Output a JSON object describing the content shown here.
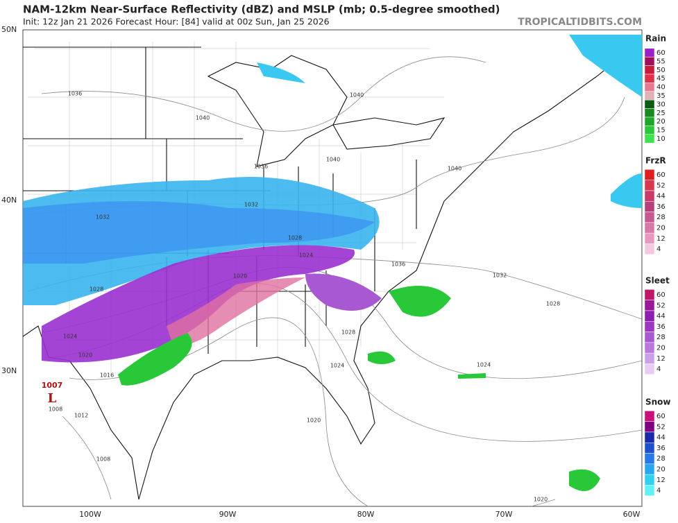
{
  "header": {
    "title": "NAM-12km Near-Surface Reflectivity (dBZ) and MSLP (mb; 0.5-degree smoothed)",
    "subtitle": "Init: 12z Jan 21 2026   Forecast Hour: [84]   valid at 00z Sun, Jan 25 2026",
    "watermark": "TROPICALTIDBITS.COM"
  },
  "map": {
    "lat_labels": [
      "50N",
      "40N",
      "30N"
    ],
    "lon_labels": [
      "100W",
      "90W",
      "80W",
      "70W",
      "60W"
    ],
    "isobar_labels": [
      "1036",
      "1040",
      "1036",
      "1040",
      "1040",
      "1040",
      "1032",
      "1032",
      "1028",
      "1024",
      "1036",
      "1032",
      "1028",
      "1020",
      "1028",
      "1024",
      "1020",
      "1016",
      "1028",
      "1024",
      "1024",
      "1020",
      "1012",
      "1008",
      "1008",
      "1020"
    ],
    "low": {
      "pressure": "1007",
      "label": "L"
    }
  },
  "legend": [
    {
      "label": "Rain",
      "ticks": [
        60,
        55,
        50,
        45,
        40,
        35,
        30,
        25,
        20,
        15,
        10
      ],
      "colors": [
        "#9a20c8",
        "#a0105a",
        "#c81a3a",
        "#e0304a",
        "#e87890",
        "#e0b0b8",
        "#0a5a14",
        "#148a20",
        "#1ea82a",
        "#28c838",
        "#40e050"
      ]
    },
    {
      "label": "FrzR",
      "ticks": [
        60,
        52,
        44,
        36,
        28,
        20,
        12,
        4
      ],
      "colors": [
        "#e02020",
        "#d83850",
        "#c83a6a",
        "#b8407a",
        "#c85890",
        "#d878a8",
        "#e898c0",
        "#f4c8dc"
      ]
    },
    {
      "label": "Sleet",
      "ticks": [
        60,
        52,
        44,
        36,
        28,
        20,
        12,
        4
      ],
      "colors": [
        "#c01868",
        "#9a1898",
        "#8a20b0",
        "#9a38c0",
        "#a858d0",
        "#b878dc",
        "#cca0e8",
        "#e4ccf4"
      ]
    },
    {
      "label": "Snow",
      "ticks": [
        60,
        52,
        44,
        36,
        28,
        20,
        12,
        4
      ],
      "colors": [
        "#c8107a",
        "#800080",
        "#1a2aa8",
        "#2050d0",
        "#2878e8",
        "#28a8f0",
        "#30d0f0",
        "#60f0f8"
      ]
    }
  ]
}
